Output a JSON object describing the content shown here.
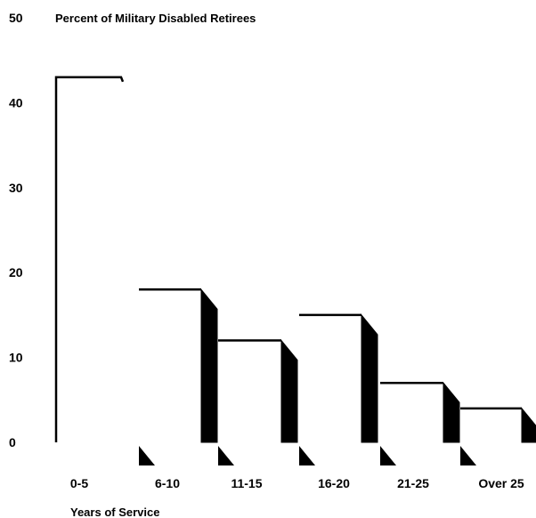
{
  "chart_data": {
    "type": "bar",
    "title": "Percent of Military Disabled Retirees",
    "xlabel": "Years of Service",
    "ylabel": "",
    "categories": [
      "0-5",
      "6-10",
      "11-15",
      "16-20",
      "21-25",
      "Over 25"
    ],
    "values": [
      43,
      18,
      12,
      15,
      7,
      4
    ],
    "ylim": [
      0,
      50
    ],
    "yticks": [
      "0",
      "10",
      "20",
      "30",
      "40",
      "50"
    ],
    "grid": false,
    "legend": "none",
    "colors": {
      "bar_fill": "#ffffff",
      "bar_outline": "#000000",
      "bar_side": "#000000"
    }
  }
}
